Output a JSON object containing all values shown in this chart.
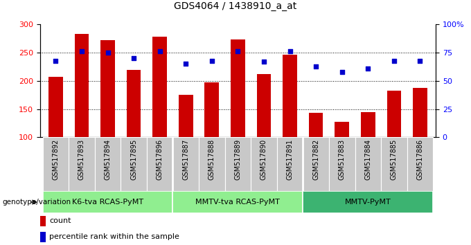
{
  "title": "GDS4064 / 1438910_a_at",
  "samples": [
    "GSM517892",
    "GSM517893",
    "GSM517894",
    "GSM517895",
    "GSM517896",
    "GSM517887",
    "GSM517888",
    "GSM517889",
    "GSM517890",
    "GSM517891",
    "GSM517882",
    "GSM517883",
    "GSM517884",
    "GSM517885",
    "GSM517886"
  ],
  "counts": [
    207,
    283,
    272,
    220,
    278,
    175,
    197,
    274,
    212,
    247,
    143,
    127,
    144,
    183,
    187
  ],
  "percentiles": [
    68,
    76,
    75,
    70,
    76,
    65,
    68,
    76,
    67,
    76,
    63,
    58,
    61,
    68,
    68
  ],
  "groups_info": [
    [
      0,
      4,
      "K6-tva RCAS-PyMT",
      "#90EE90"
    ],
    [
      5,
      9,
      "MMTV-tva RCAS-PyMT",
      "#90EE90"
    ],
    [
      10,
      14,
      "MMTV-PyMT",
      "#3CB371"
    ]
  ],
  "bar_color": "#CC0000",
  "dot_color": "#0000CC",
  "ylim_left": [
    100,
    300
  ],
  "ylim_right": [
    0,
    100
  ],
  "yticks_left": [
    100,
    150,
    200,
    250,
    300
  ],
  "yticks_right": [
    0,
    25,
    50,
    75,
    100
  ],
  "xlabel_fontsize": 7,
  "title_fontsize": 10,
  "group_fontsize": 8,
  "legend_fontsize": 8
}
